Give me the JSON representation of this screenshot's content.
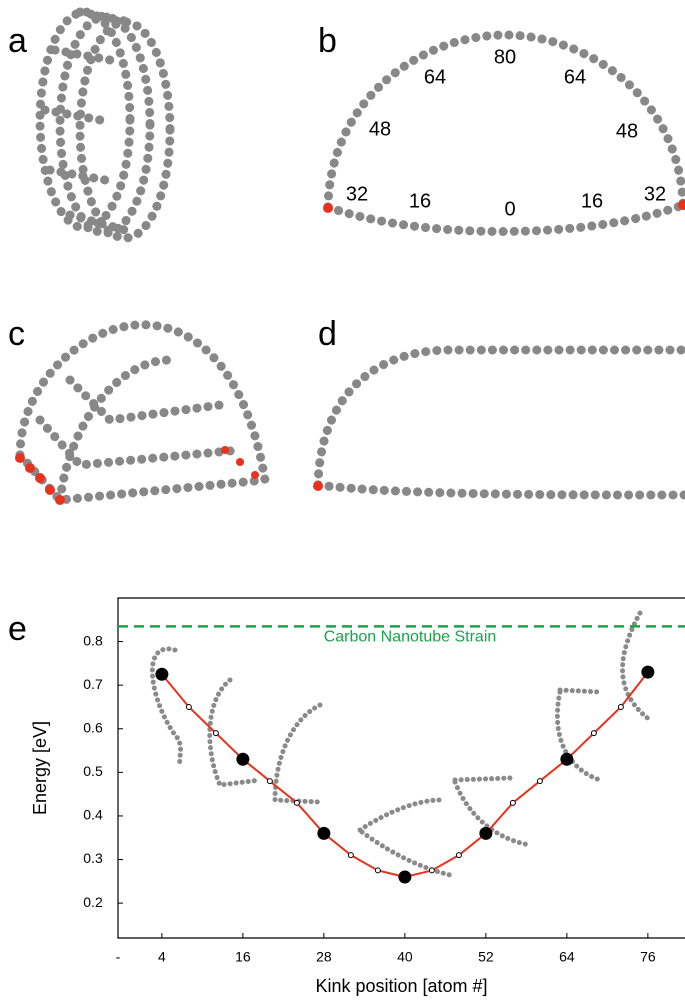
{
  "panels": {
    "a": "a",
    "b": "b",
    "c": "c",
    "d": "d",
    "e": "e"
  },
  "panel_b_labels": [
    "80",
    "64",
    "64",
    "48",
    "48",
    "32",
    "16",
    "0",
    "16",
    "32"
  ],
  "chart_data": {
    "type": "line",
    "x_label": "Kink position [atom #]",
    "y_label": "Energy [eV]",
    "x": [
      4,
      8,
      12,
      16,
      20,
      24,
      28,
      32,
      36,
      40,
      44,
      48,
      52,
      56,
      60,
      64,
      68,
      72,
      76
    ],
    "series": [
      {
        "color": "#e8321e",
        "values": [
          0.725,
          0.65,
          0.59,
          0.53,
          0.48,
          0.43,
          0.36,
          0.31,
          0.275,
          0.26,
          0.275,
          0.31,
          0.36,
          0.43,
          0.48,
          0.53,
          0.59,
          0.65,
          0.73
        ]
      }
    ],
    "xlim": [
      -2.5,
      81.5
    ],
    "ylim": [
      0.12,
      0.9
    ],
    "xticks": [
      {
        "value": -2.5,
        "label": "-"
      },
      4,
      16,
      28,
      40,
      52,
      64,
      76
    ],
    "yticks": [
      0.2,
      0.3,
      0.4,
      0.5,
      0.6,
      0.7,
      0.8
    ],
    "reference_line": {
      "value": 0.835,
      "label": "Carbon Nanotube Strain",
      "color": "#1aa34a"
    }
  }
}
